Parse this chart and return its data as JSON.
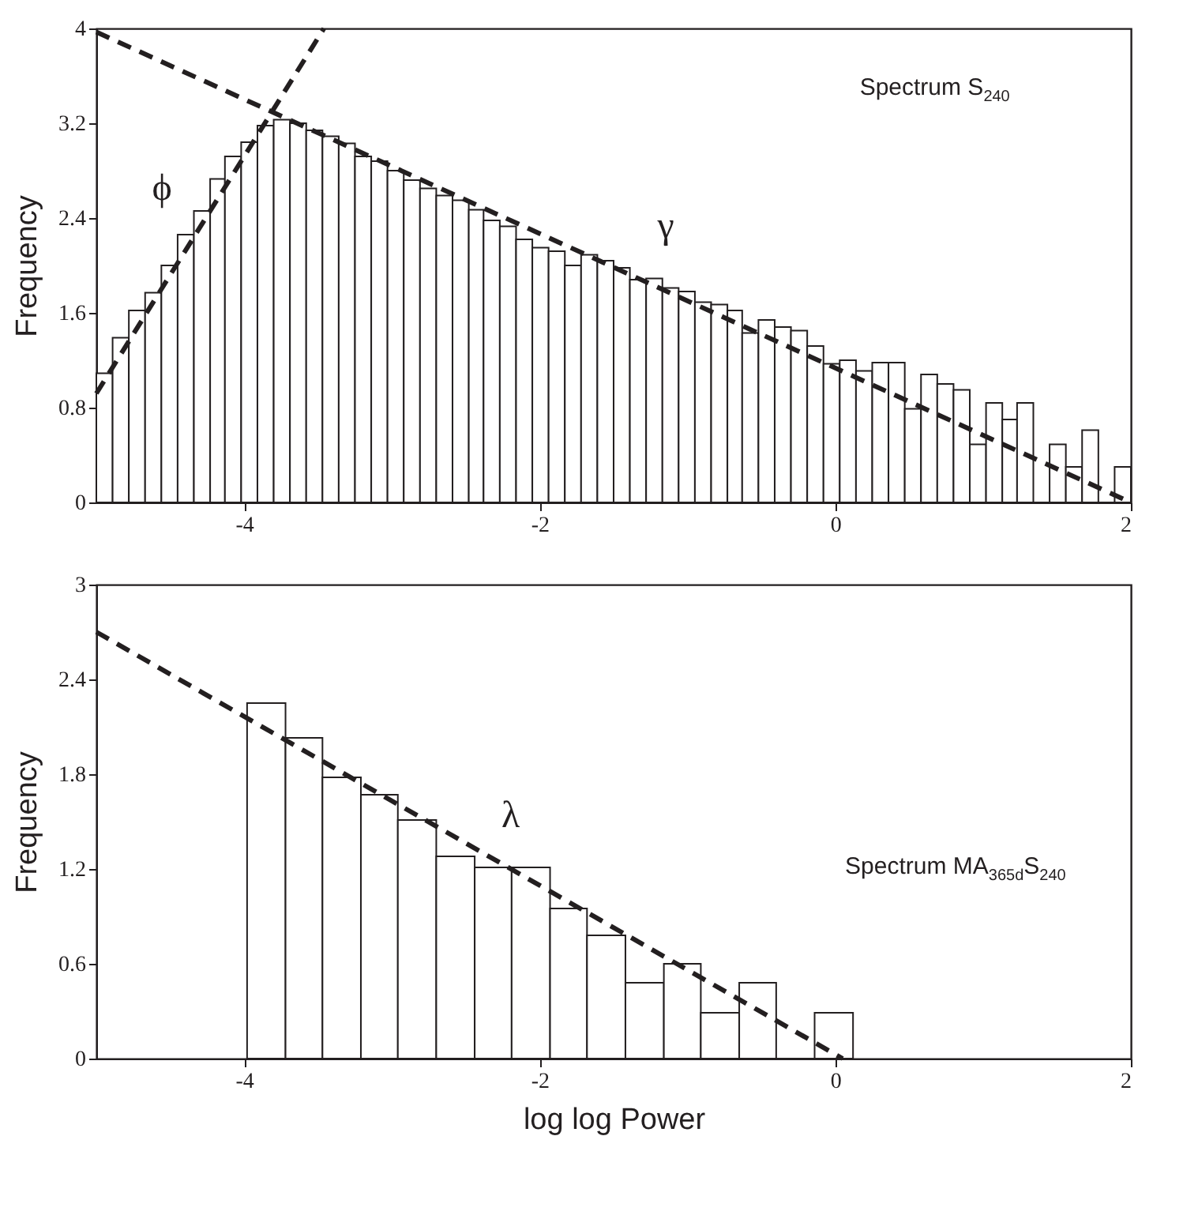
{
  "chart_data": [
    {
      "type": "histogram",
      "ylabel": "Frequency",
      "annotations": [
        "Spectrum S$_{240}$",
        "ϕ",
        "γ"
      ],
      "bins": [
        -5,
        -4.89,
        -4.78,
        -4.67,
        -4.56,
        -4.45,
        -4.34,
        -4.23,
        -4.13,
        -4.02,
        -3.91,
        -3.8,
        -3.69,
        -3.58,
        -3.47,
        -3.36,
        -3.25,
        -3.14,
        -3.03,
        -2.92,
        -2.81,
        -2.7,
        -2.59,
        -2.48,
        -2.38,
        -2.27,
        -2.16,
        -2.05,
        -1.94,
        -1.83,
        -1.72,
        -1.61,
        -1.5,
        -1.39,
        -1.28,
        -1.17,
        -1.06,
        -0.95,
        -0.84,
        -0.73,
        -0.63,
        -0.52,
        -0.41,
        -0.3,
        -0.19,
        -0.08,
        0.03,
        0.14,
        0.25,
        0.36,
        0.47,
        0.58,
        0.69,
        0.8,
        0.91,
        1.02,
        1.13,
        1.23,
        1.34,
        1.45,
        1.56,
        1.67,
        1.78,
        1.89,
        2
      ],
      "series": [
        {
          "color": "#ffffff",
          "values": [
            1.09,
            1.39,
            1.62,
            1.77,
            2.0,
            2.26,
            2.46,
            2.73,
            2.92,
            3.04,
            3.18,
            3.23,
            3.2,
            3.14,
            3.09,
            3.03,
            2.92,
            2.88,
            2.8,
            2.72,
            2.65,
            2.59,
            2.55,
            2.47,
            2.38,
            2.33,
            2.22,
            2.15,
            2.12,
            2.0,
            2.09,
            2.04,
            1.98,
            1.88,
            1.89,
            1.81,
            1.78,
            1.69,
            1.67,
            1.62,
            1.43,
            1.54,
            1.48,
            1.45,
            1.32,
            1.17,
            1.2,
            1.11,
            1.18,
            1.18,
            0.79,
            1.08,
            1.0,
            0.95,
            0.49,
            0.84,
            0.7,
            0.84,
            0,
            0.49,
            0.3,
            0.61,
            0,
            0.3
          ]
        },
        {
          "type": "line",
          "color": "#231f20",
          "line_style": "dashed",
          "x": [
            -5,
            -3.46
          ],
          "values": [
            0.92,
            4
          ]
        },
        {
          "type": "line",
          "color": "#231f20",
          "line_style": "dashed",
          "x": [
            -5,
            2
          ],
          "values": [
            3.97,
            0
          ]
        }
      ],
      "xlim": [
        -5,
        2
      ],
      "xticks": [
        -4,
        -2,
        0,
        2
      ],
      "ylim": [
        0,
        4
      ],
      "yticks": [
        0,
        0.8,
        1.6,
        2.4,
        3.2,
        4
      ],
      "grid": false
    },
    {
      "type": "histogram",
      "xlabel": "log log Power",
      "ylabel": "Frequency",
      "annotations": [
        "Spectrum MA$_{365d}$S$_{240}$",
        "λ"
      ],
      "bins": [
        -3.98,
        -3.72,
        -3.47,
        -3.21,
        -2.96,
        -2.7,
        -2.44,
        -2.19,
        -1.93,
        -1.68,
        -1.42,
        -1.16,
        -0.91,
        -0.65,
        -0.4,
        -0.14,
        0.12
      ],
      "series": [
        {
          "color": "#ffffff",
          "values": [
            2.25,
            2.03,
            1.78,
            1.67,
            1.51,
            1.28,
            1.21,
            1.21,
            0.95,
            0.78,
            0.48,
            0.6,
            0.29,
            0.48,
            0,
            0.29
          ]
        },
        {
          "type": "line",
          "color": "#231f20",
          "line_style": "dashed",
          "x": [
            -5,
            0.05
          ],
          "values": [
            2.7,
            0
          ]
        }
      ],
      "xlim": [
        -5,
        2
      ],
      "xticks": [
        -4,
        -2,
        0,
        2
      ],
      "ylim": [
        0,
        3
      ],
      "yticks": [
        0,
        0.6,
        1.2,
        1.8,
        2.4,
        3
      ],
      "grid": false
    }
  ]
}
